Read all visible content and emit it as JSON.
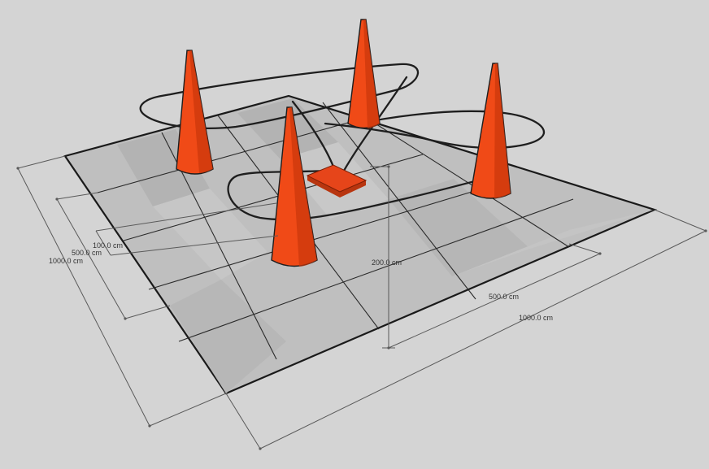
{
  "colors": {
    "background": "#d4d4d4",
    "tile_light": "#c3c3c3",
    "tile_dark": "#b4b4b4",
    "grid_line": "#2a2a2a",
    "cone": "#f04a17",
    "cone_shadow": "#c9360c",
    "pad": "#e6451a",
    "path": "#1e1e1e",
    "dimension": "#5a5a5a"
  },
  "dimensions": {
    "left_outer": "1000.0 cm",
    "left_inner": "500.0 cm",
    "left_small": "100.0 cm",
    "height": "200.0 cm",
    "front_inner": "500.0 cm",
    "front_outer": "1000.0 cm"
  },
  "objects": {
    "cones": [
      "traffic-cone",
      "traffic-cone",
      "traffic-cone",
      "traffic-cone"
    ],
    "landing_pad": "landing-pad",
    "flight_path": "flight-path"
  }
}
